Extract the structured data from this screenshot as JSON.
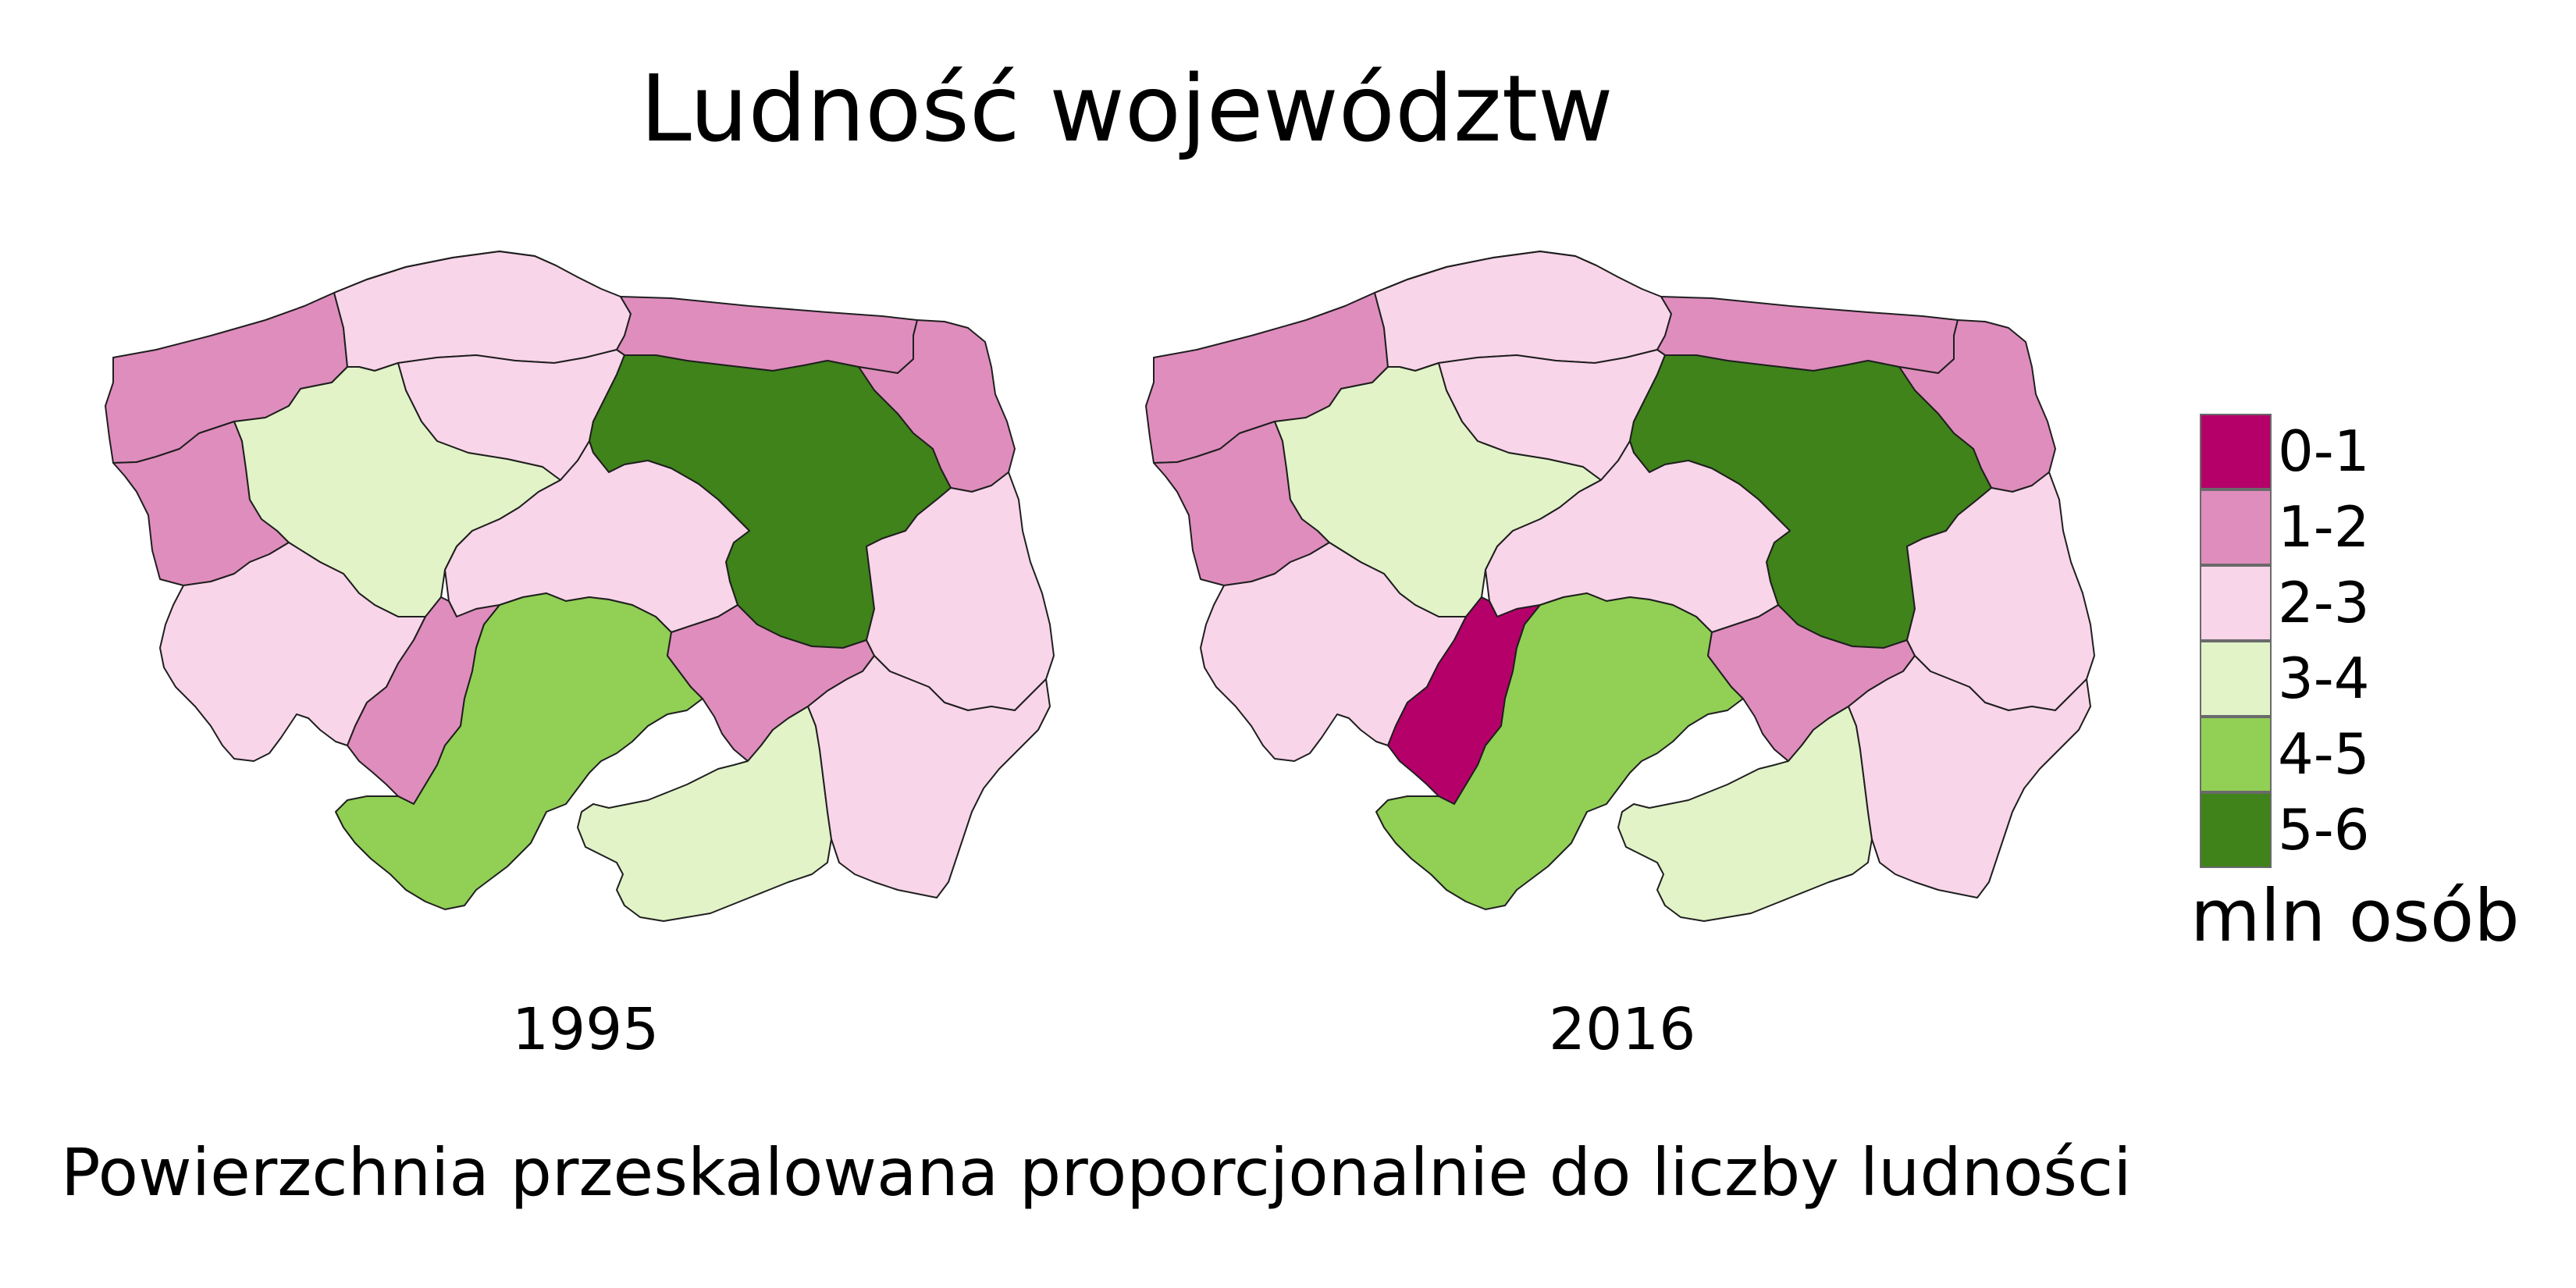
{
  "title": "Ludność województw",
  "caption": "Powierzchnia przeskalowana proporcjonalnie do liczby ludności",
  "legend": {
    "unit": "mln osób",
    "classes": [
      {
        "label": "0-1",
        "color": "#b5006a"
      },
      {
        "label": "1-2",
        "color": "#df8dbd"
      },
      {
        "label": "2-3",
        "color": "#f9d5e9"
      },
      {
        "label": "3-4",
        "color": "#e1f3c7"
      },
      {
        "label": "4-5",
        "color": "#91cf55"
      },
      {
        "label": "5-6",
        "color": "#3f831a"
      }
    ]
  },
  "maps": [
    {
      "year": "1995",
      "regions": [
        {
          "region": "zachodniopomorskie",
          "class": "1-2"
        },
        {
          "region": "pomorskie",
          "class": "2-3"
        },
        {
          "region": "warmińsko-mazurskie",
          "class": "1-2"
        },
        {
          "region": "podlaskie",
          "class": "1-2"
        },
        {
          "region": "lubuskie",
          "class": "1-2"
        },
        {
          "region": "wielkopolskie",
          "class": "3-4"
        },
        {
          "region": "kujawsko-pomorskie",
          "class": "2-3"
        },
        {
          "region": "mazowieckie",
          "class": "5-6"
        },
        {
          "region": "łódzkie",
          "class": "2-3"
        },
        {
          "region": "dolnośląskie",
          "class": "2-3"
        },
        {
          "region": "opolskie",
          "class": "1-2"
        },
        {
          "region": "śląskie",
          "class": "4-5"
        },
        {
          "region": "świętokrzyskie",
          "class": "1-2"
        },
        {
          "region": "lubelskie",
          "class": "2-3"
        },
        {
          "region": "małopolskie",
          "class": "3-4"
        },
        {
          "region": "podkarpackie",
          "class": "2-3"
        }
      ]
    },
    {
      "year": "2016",
      "regions": [
        {
          "region": "zachodniopomorskie",
          "class": "1-2"
        },
        {
          "region": "pomorskie",
          "class": "2-3"
        },
        {
          "region": "warmińsko-mazurskie",
          "class": "1-2"
        },
        {
          "region": "podlaskie",
          "class": "1-2"
        },
        {
          "region": "lubuskie",
          "class": "1-2"
        },
        {
          "region": "wielkopolskie",
          "class": "3-4"
        },
        {
          "region": "kujawsko-pomorskie",
          "class": "2-3"
        },
        {
          "region": "mazowieckie",
          "class": "5-6"
        },
        {
          "region": "łódzkie",
          "class": "2-3"
        },
        {
          "region": "dolnośląskie",
          "class": "2-3"
        },
        {
          "region": "opolskie",
          "class": "0-1"
        },
        {
          "region": "śląskie",
          "class": "4-5"
        },
        {
          "region": "świętokrzyskie",
          "class": "1-2"
        },
        {
          "region": "lubelskie",
          "class": "2-3"
        },
        {
          "region": "małopolskie",
          "class": "3-4"
        },
        {
          "region": "podkarpackie",
          "class": "2-3"
        }
      ]
    }
  ]
}
